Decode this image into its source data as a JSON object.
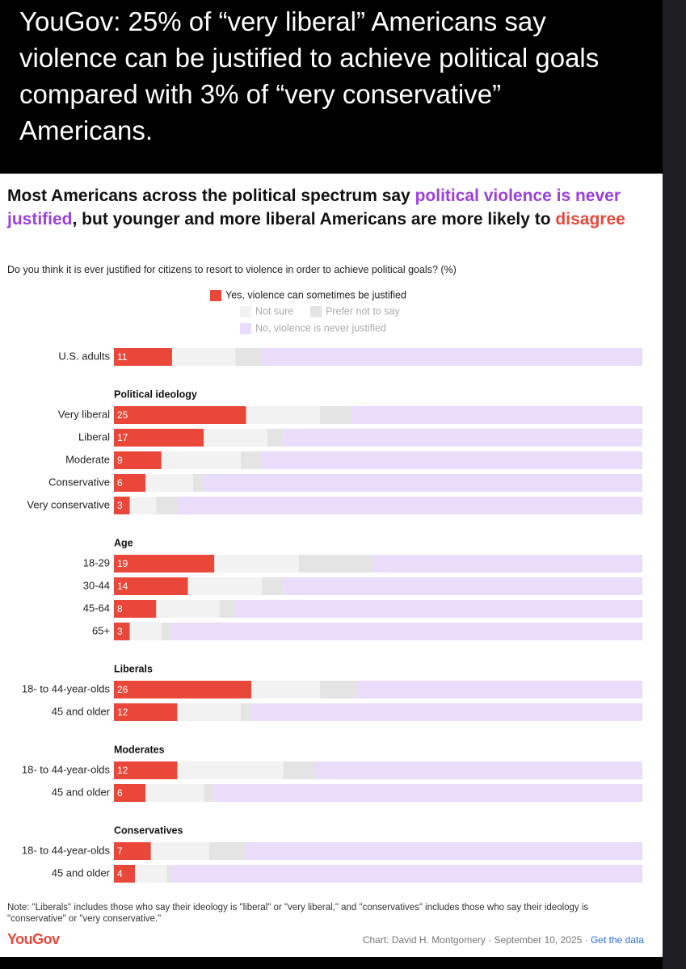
{
  "caption": "YouGov: 25% of “very liberal” Americans say violence can be justified to achieve political goals compared with  3% of “very conservative” Americans.",
  "chart_data": {
    "type": "stacked-bar",
    "title_parts": [
      {
        "text": "Most Americans across the political spectrum say "
      },
      {
        "text": "political violence is never justified",
        "color": "#9b3fe0"
      },
      {
        "text": ", but younger and more liberal Americans are more likely to "
      },
      {
        "text": "disagree",
        "color": "#e8473a"
      }
    ],
    "subtitle": "Do you think it is ever justified for citizens to resort to violence in order to achieve political goals? (%)",
    "xlim": [
      0,
      100
    ],
    "legend": "top",
    "series": [
      {
        "name": "Yes, violence can sometimes be justified",
        "color": "#e8473a"
      },
      {
        "name": "Not sure",
        "color": "#f2f2f2"
      },
      {
        "name": "Prefer not to say",
        "color": "#e4e4e4"
      },
      {
        "name": "No, violence is never justified",
        "color": "#e9ddfb"
      }
    ],
    "groups": [
      {
        "categories": [
          "U.S. adults"
        ],
        "values": [
          [
            11
          ],
          [
            12
          ],
          [
            5
          ],
          [
            72
          ]
        ]
      },
      {
        "title": "Political ideology",
        "categories": [
          "Very liberal",
          "Liberal",
          "Moderate",
          "Conservative",
          "Very conservative"
        ],
        "values": [
          [
            25,
            17,
            9,
            6,
            3
          ],
          [
            14,
            12,
            15,
            9,
            5
          ],
          [
            6,
            3,
            4,
            2,
            4
          ],
          [
            55,
            68,
            72,
            83,
            88
          ]
        ]
      },
      {
        "title": "Age",
        "categories": [
          "18-29",
          "30-44",
          "45-64",
          "65+"
        ],
        "values": [
          [
            19,
            14,
            8,
            3
          ],
          [
            16,
            14,
            12,
            6
          ],
          [
            14,
            4,
            3,
            2
          ],
          [
            51,
            68,
            77,
            89
          ]
        ]
      },
      {
        "title": "Liberals",
        "categories": [
          "18- to 44-year-olds",
          "45 and older"
        ],
        "values": [
          [
            26,
            12
          ],
          [
            13,
            12
          ],
          [
            7,
            2
          ],
          [
            54,
            74
          ]
        ]
      },
      {
        "title": "Moderates",
        "categories": [
          "18- to 44-year-olds",
          "45 and older"
        ],
        "values": [
          [
            12,
            6
          ],
          [
            20,
            11
          ],
          [
            6,
            2
          ],
          [
            62,
            81
          ]
        ]
      },
      {
        "title": "Conservatives",
        "categories": [
          "18- to 44-year-olds",
          "45 and older"
        ],
        "values": [
          [
            7,
            4
          ],
          [
            11,
            6
          ],
          [
            7,
            1
          ],
          [
            75,
            89
          ]
        ]
      }
    ],
    "note": "Note: \"Liberals\" includes those who say their ideology is \"liberal\" or \"very liberal,\" and \"conservatives\" includes those who say their ideology is \"conservative\" or \"very conservative.\"",
    "logo": "YouGov",
    "source": "Chart: David H. Montgomery · September 10, 2025 · ",
    "link": "Get the data"
  }
}
